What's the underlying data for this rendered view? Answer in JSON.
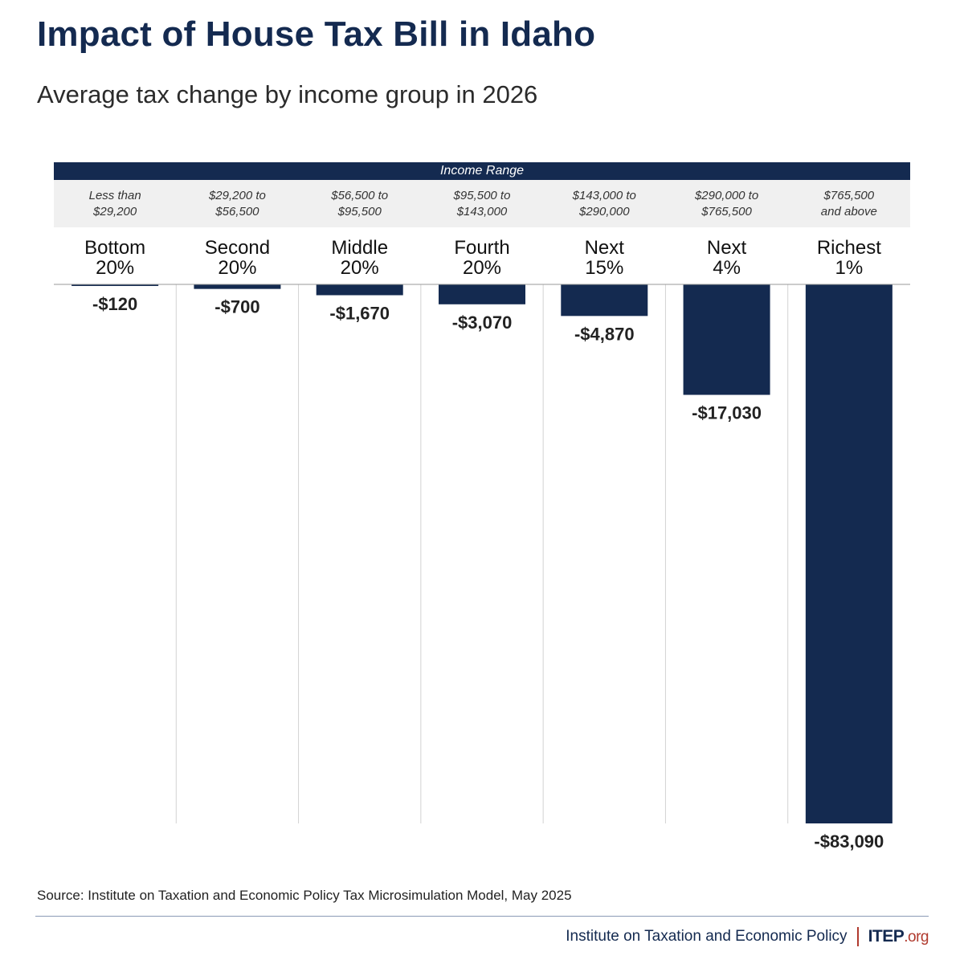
{
  "title": "Impact of House Tax Bill in Idaho",
  "subtitle": "Average tax change by income group in 2026",
  "range_header": "Income Range",
  "source": "Source: Institute on Taxation and Economic Policy Tax Microsimulation Model, May 2025",
  "footer": {
    "org_name": "Institute on Taxation and Economic Policy",
    "logo_main": "ITEP",
    "logo_suffix": ".org"
  },
  "colors": {
    "bar": "#142a50",
    "accent": "#b03a2e"
  },
  "chart_data": {
    "type": "bar",
    "categories": [
      "Bottom\n20%",
      "Second\n20%",
      "Middle\n20%",
      "Fourth\n20%",
      "Next\n15%",
      "Next\n4%",
      "Richest\n1%"
    ],
    "income_ranges": [
      "Less than\n$29,200",
      "$29,200 to\n$56,500",
      "$56,500 to\n$95,500",
      "$95,500 to\n$143,000",
      "$143,000 to\n$290,000",
      "$290,000 to\n$765,500",
      "$765,500\nand above"
    ],
    "values": [
      -120,
      -700,
      -1670,
      -3070,
      -4870,
      -17030,
      -83090
    ],
    "value_labels": [
      "-$120",
      "-$700",
      "-$1,670",
      "-$3,070",
      "-$4,870",
      "-$17,030",
      "-$83,090"
    ],
    "ylim": [
      -83090,
      0
    ],
    "grid": false,
    "legend": "none"
  }
}
